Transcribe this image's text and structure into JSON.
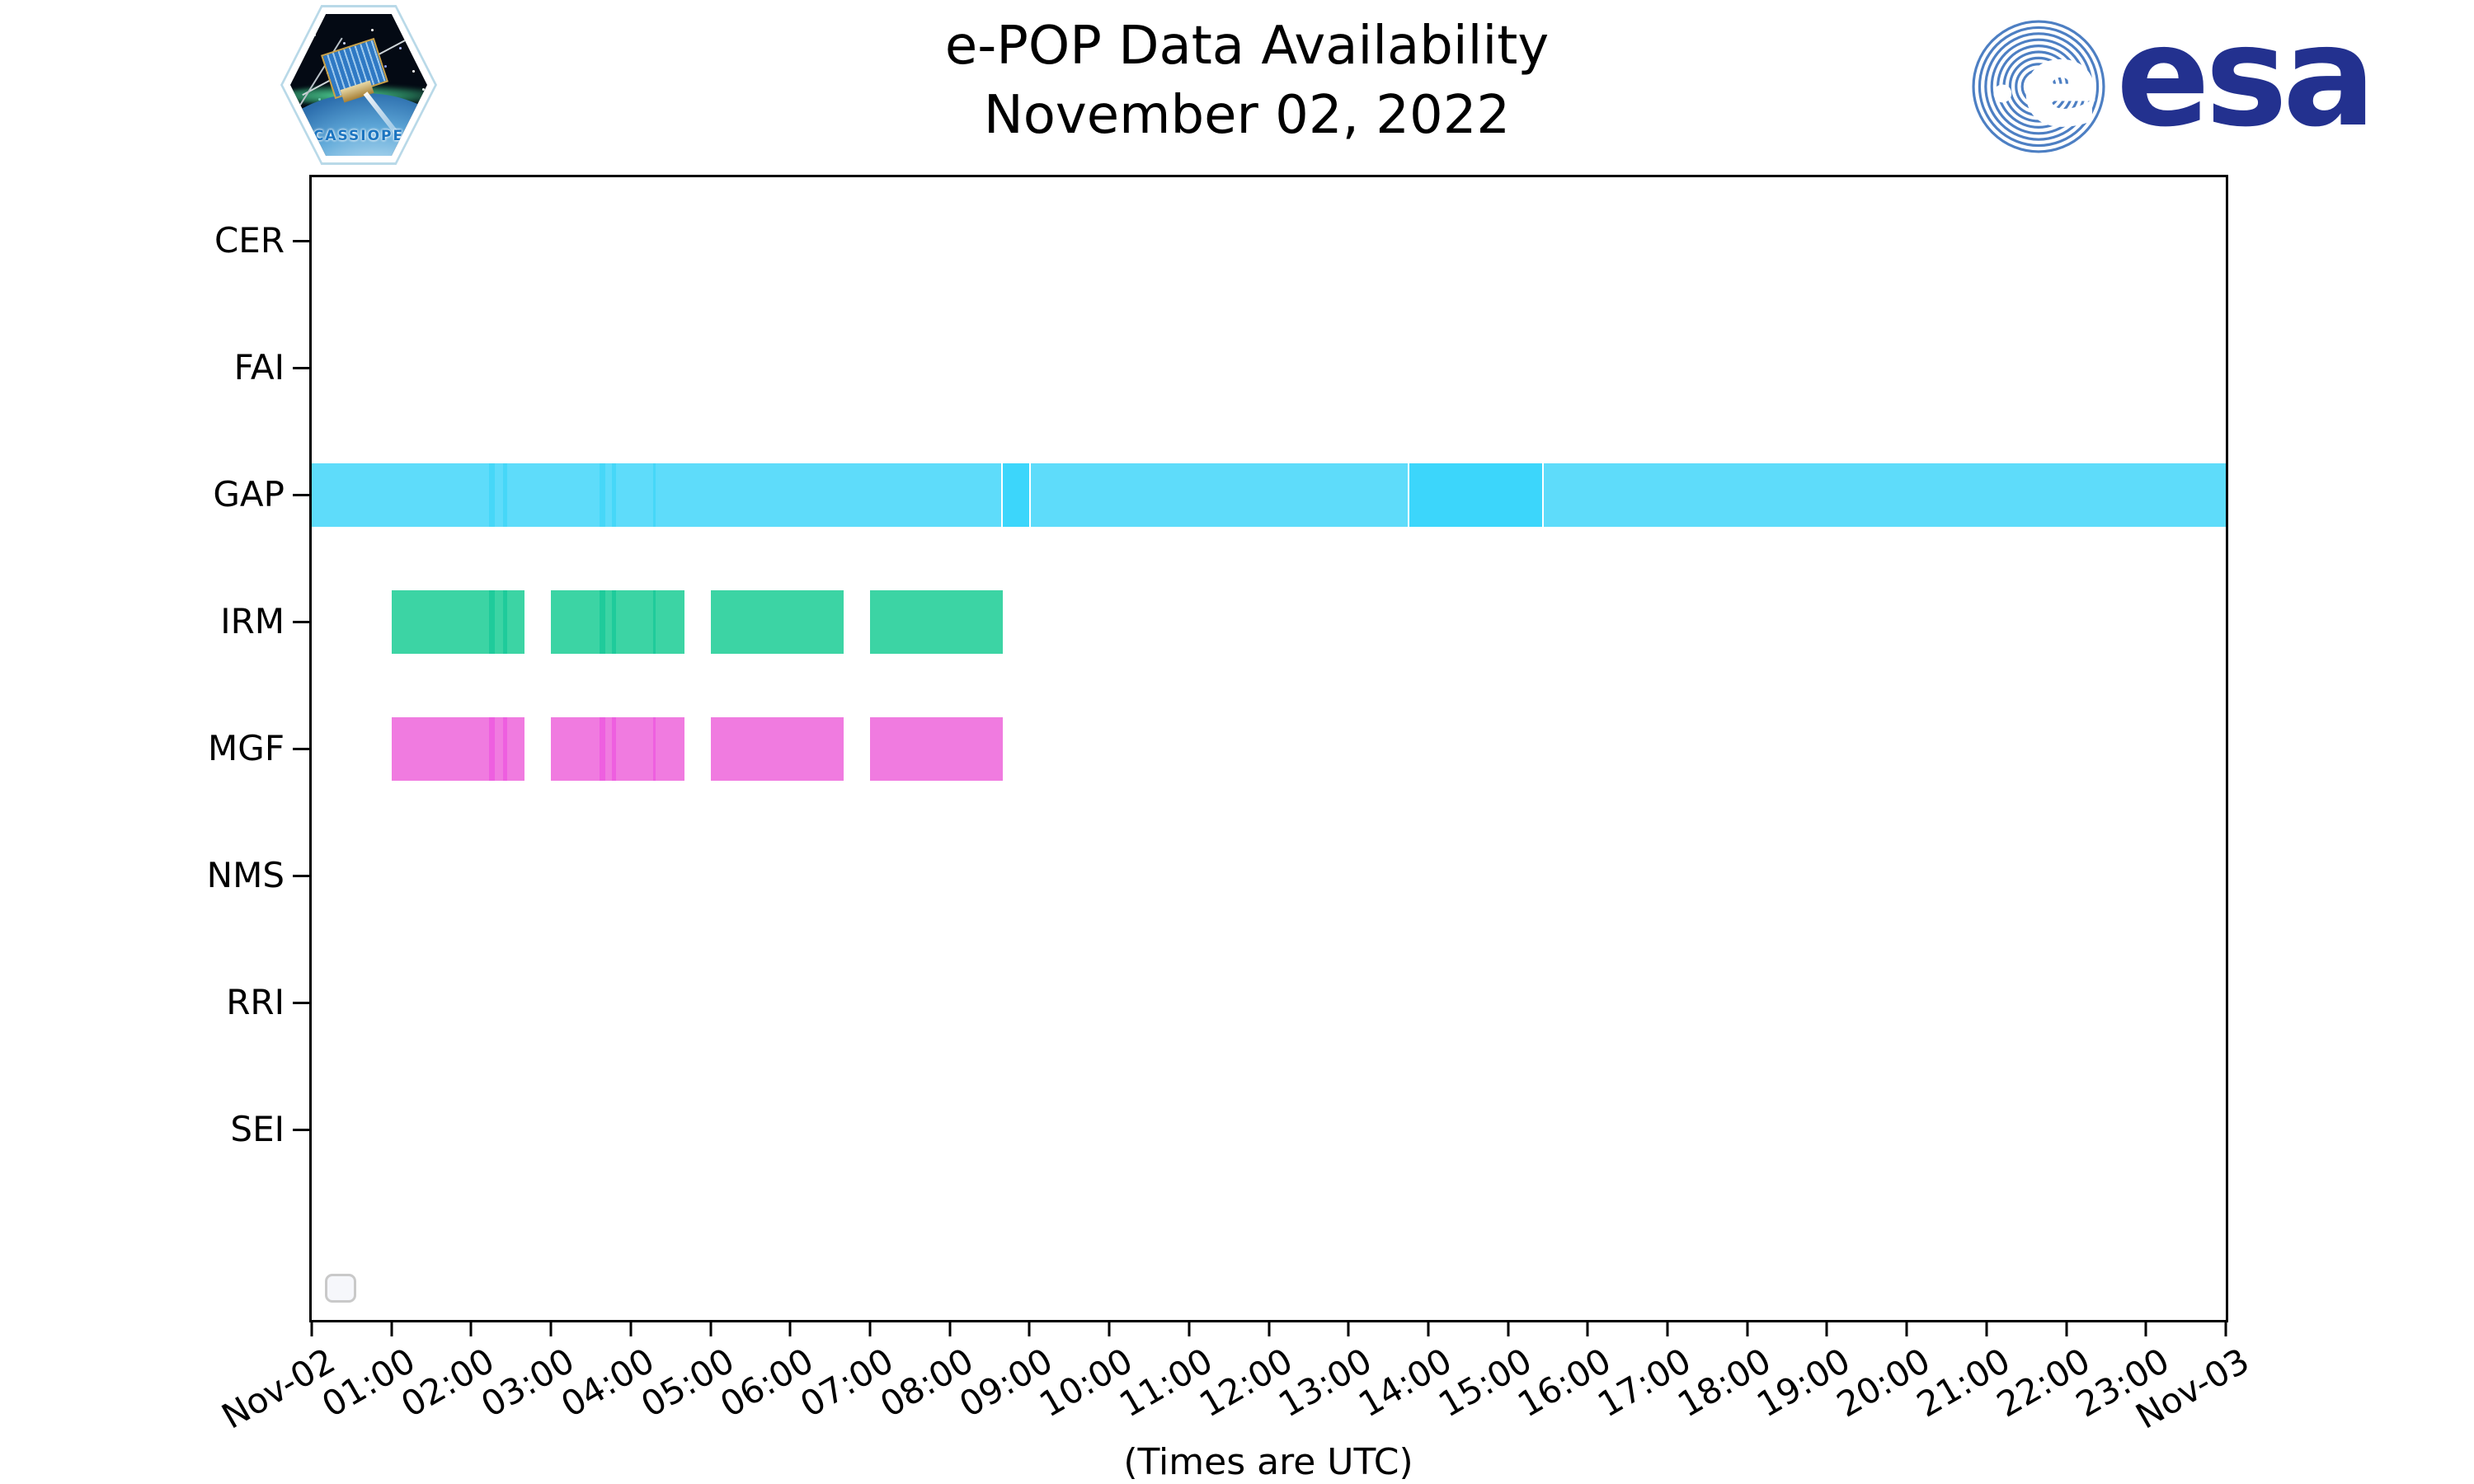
{
  "header": {
    "title_line1": "e-POP Data Availability",
    "title_line2": "November 02, 2022",
    "cassiope_patch_label": "CASSIOPE",
    "esa_wordmark": "esa"
  },
  "footer": {
    "note": "(Times are UTC)"
  },
  "colors": {
    "gap_bar": "#5EDCFA",
    "gap_bar_dark": "#3CD6FB",
    "gap_stripe": "#46D7F8",
    "irm_bar": "#3CD4A4",
    "irm_stripe": "#1FCB9B",
    "mgf_bar": "#F07BE0",
    "mgf_stripe": "#EE5FE0",
    "axis": "#000000",
    "esa_blue": "#23318F",
    "esa_rings": "#4D7FC3",
    "cassiope_text": "#1B74C0"
  },
  "chart_data": {
    "type": "timeline",
    "title": "e-POP Data Availability",
    "subtitle": "November 02, 2022",
    "x_axis": {
      "start_tick_label": "Nov-02",
      "end_tick_label": "Nov-03",
      "hours_span": 24,
      "tick_interval_hours": 1,
      "hour_labels": [
        "01:00",
        "02:00",
        "03:00",
        "04:00",
        "05:00",
        "06:00",
        "07:00",
        "08:00",
        "09:00",
        "10:00",
        "11:00",
        "12:00",
        "13:00",
        "14:00",
        "15:00",
        "16:00",
        "17:00",
        "18:00",
        "19:00",
        "20:00",
        "21:00",
        "22:00",
        "23:00"
      ],
      "note": "(Times are UTC)"
    },
    "y_categories": [
      "CER",
      "FAI",
      "GAP",
      "IRM",
      "MGF",
      "NMS",
      "RRI",
      "SEI"
    ],
    "legend": {
      "present": true,
      "entries": []
    },
    "series": [
      {
        "row": "GAP",
        "color": "#5EDCFA",
        "stripe_color": "#46D7F8",
        "segments": [
          {
            "start_hour": 0,
            "end_hour": 24,
            "start": "00:00",
            "end": "24:00"
          }
        ],
        "subsegments": [
          {
            "start_hour": 8.64,
            "end_hour": 9.02,
            "color": "#3CD6FB",
            "start": "08:38",
            "end": "09:01"
          },
          {
            "start_hour": 13.74,
            "end_hour": 15.45,
            "color": "#3CD6FB",
            "start": "13:44",
            "end": "15:27"
          }
        ]
      },
      {
        "row": "IRM",
        "color": "#3CD4A4",
        "stripe_color": "#1FCB9B",
        "segments": [
          {
            "start_hour": 1.0,
            "end_hour": 2.67,
            "start": "01:00",
            "end": "02:40"
          },
          {
            "start_hour": 3.0,
            "end_hour": 4.67,
            "start": "03:00",
            "end": "04:40"
          },
          {
            "start_hour": 5.0,
            "end_hour": 6.67,
            "start": "05:00",
            "end": "06:40"
          },
          {
            "start_hour": 7.0,
            "end_hour": 8.67,
            "start": "07:00",
            "end": "08:40"
          }
        ],
        "subsegments": []
      },
      {
        "row": "MGF",
        "color": "#F07BE0",
        "stripe_color": "#EE5FE0",
        "segments": [
          {
            "start_hour": 1.0,
            "end_hour": 2.67,
            "start": "01:00",
            "end": "02:40"
          },
          {
            "start_hour": 3.0,
            "end_hour": 4.67,
            "start": "03:00",
            "end": "04:40"
          },
          {
            "start_hour": 5.0,
            "end_hour": 6.67,
            "start": "05:00",
            "end": "06:40"
          },
          {
            "start_hour": 7.0,
            "end_hour": 8.67,
            "start": "07:00",
            "end": "08:40"
          }
        ],
        "subsegments": []
      }
    ],
    "overlap_marks": [
      {
        "hour": 2.26,
        "px": 7
      },
      {
        "hour": 2.42,
        "px": 5
      },
      {
        "hour": 3.64,
        "px": 7
      },
      {
        "hour": 3.79,
        "px": 5
      },
      {
        "hour": 4.3,
        "px": 3
      }
    ]
  }
}
